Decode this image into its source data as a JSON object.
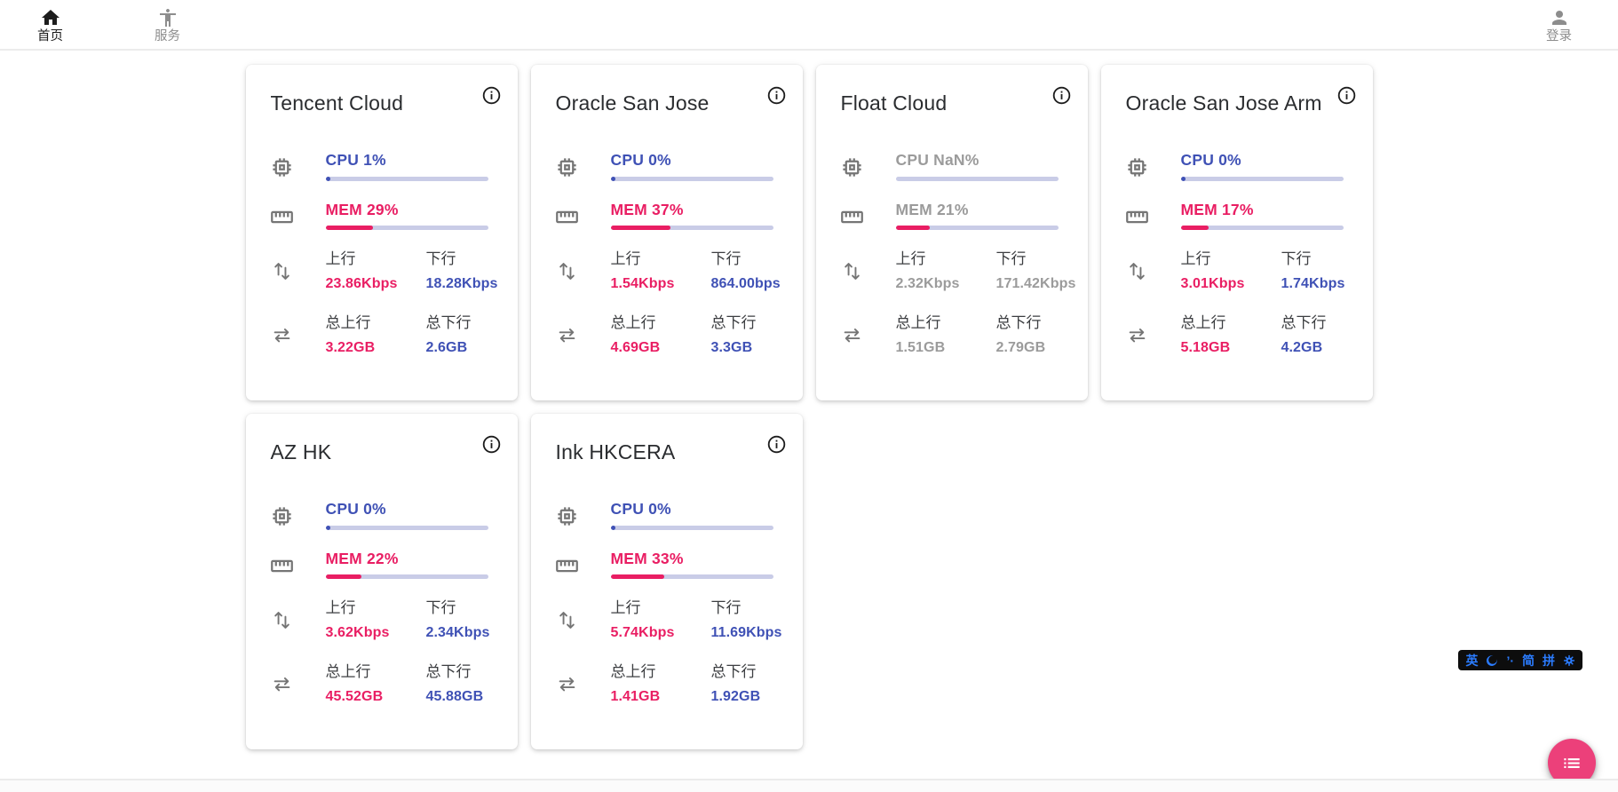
{
  "navbar": {
    "items": [
      {
        "id": "home",
        "label": "首页",
        "icon": "home-icon",
        "active": true
      },
      {
        "id": "services",
        "label": "服务",
        "icon": "accessibility-icon",
        "active": false
      }
    ],
    "login": {
      "label": "登录",
      "icon": "person-icon"
    }
  },
  "labels": {
    "up": "上行",
    "down": "下行",
    "total_up": "总上行",
    "total_down": "总下行"
  },
  "colors": {
    "accent_blue": "#3f51b5",
    "accent_pink": "#e91e63",
    "muted_gray": "#9b9b9b",
    "track": "#c9cce7",
    "fab_pink": "#ec407a",
    "ime_blue": "#2b7cff",
    "ime_bg": "#0d0d0d"
  },
  "servers": [
    {
      "name": "Tencent Cloud",
      "online": true,
      "cpu": {
        "label": "CPU 1%",
        "pct": 1
      },
      "mem": {
        "label": "MEM 29%",
        "pct": 29
      },
      "net": {
        "up": "23.86Kbps",
        "down": "18.28Kbps"
      },
      "total": {
        "up": "3.22GB",
        "down": "2.6GB"
      }
    },
    {
      "name": "Oracle San Jose",
      "online": true,
      "cpu": {
        "label": "CPU 0%",
        "pct": 0
      },
      "mem": {
        "label": "MEM 37%",
        "pct": 37
      },
      "net": {
        "up": "1.54Kbps",
        "down": "864.00bps"
      },
      "total": {
        "up": "4.69GB",
        "down": "3.3GB"
      }
    },
    {
      "name": "Float Cloud",
      "online": false,
      "cpu": {
        "label": "CPU NaN%",
        "pct": null
      },
      "mem": {
        "label": "MEM 21%",
        "pct": 21
      },
      "net": {
        "up": "2.32Kbps",
        "down": "171.42Kbps"
      },
      "total": {
        "up": "1.51GB",
        "down": "2.79GB"
      }
    },
    {
      "name": "Oracle San Jose Arm",
      "online": true,
      "cpu": {
        "label": "CPU 0%",
        "pct": 0
      },
      "mem": {
        "label": "MEM 17%",
        "pct": 17
      },
      "net": {
        "up": "3.01Kbps",
        "down": "1.74Kbps"
      },
      "total": {
        "up": "5.18GB",
        "down": "4.2GB"
      }
    },
    {
      "name": "AZ HK",
      "online": true,
      "cpu": {
        "label": "CPU 0%",
        "pct": 0
      },
      "mem": {
        "label": "MEM 22%",
        "pct": 22
      },
      "net": {
        "up": "3.62Kbps",
        "down": "2.34Kbps"
      },
      "total": {
        "up": "45.52GB",
        "down": "45.88GB"
      }
    },
    {
      "name": "Ink HKCERA",
      "online": true,
      "cpu": {
        "label": "CPU 0%",
        "pct": 0
      },
      "mem": {
        "label": "MEM 33%",
        "pct": 33
      },
      "net": {
        "up": "5.74Kbps",
        "down": "11.69Kbps"
      },
      "total": {
        "up": "1.41GB",
        "down": "1.92GB"
      }
    }
  ],
  "ime_bar": {
    "items": [
      {
        "id": "lang-english",
        "label": "英"
      },
      {
        "id": "fullwidth-moon",
        "icon": "moon-icon"
      },
      {
        "id": "punctuation",
        "label": "’·"
      },
      {
        "id": "simplified-chinese",
        "label": "简"
      },
      {
        "id": "pinyin",
        "label": "拼"
      },
      {
        "id": "ime-settings",
        "icon": "gear-icon"
      }
    ]
  },
  "fab": {
    "icon": "list-icon"
  }
}
